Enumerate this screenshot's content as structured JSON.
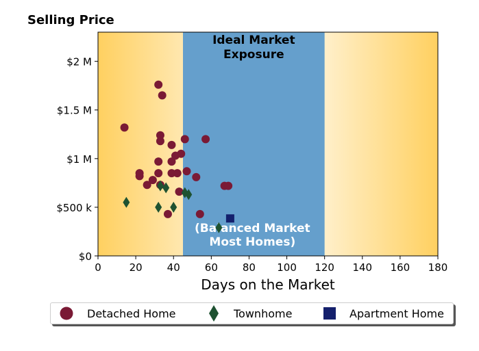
{
  "chart_data": {
    "type": "scatter",
    "title": "Selling Price",
    "xlabel": "Days on the Market",
    "ylabel": "",
    "xlim": [
      0,
      180
    ],
    "ylim": [
      0,
      2300000
    ],
    "x_ticks": [
      0,
      20,
      40,
      60,
      80,
      100,
      120,
      140,
      160,
      180
    ],
    "x_tick_labels": [
      "0",
      "20",
      "40",
      "60",
      "80",
      "100",
      "120",
      "140",
      "160",
      "180"
    ],
    "y_ticks": [
      0,
      500000,
      1000000,
      1500000,
      2000000
    ],
    "y_tick_labels": [
      "$0",
      "$500 k",
      "$1 M",
      "$1.5 M",
      "$2 M"
    ],
    "grid": false,
    "legend_position": "bottom",
    "band": {
      "x_range": [
        45,
        120
      ],
      "color": "#659fcc",
      "label_top": "Ideal Market\nExposure",
      "label_bottom": "(Balanced Market\nMost Homes)"
    },
    "background_gradient": {
      "edge_color": "#ffd060",
      "center_color": "#ffffff"
    },
    "series": [
      {
        "name": "Detached Home",
        "marker": "circle",
        "color": "#7a1a35",
        "points": [
          [
            14,
            1320000
          ],
          [
            22,
            820000
          ],
          [
            22,
            850000
          ],
          [
            26,
            730000
          ],
          [
            29,
            780000
          ],
          [
            32,
            1760000
          ],
          [
            32,
            970000
          ],
          [
            32,
            850000
          ],
          [
            33,
            1240000
          ],
          [
            33,
            1180000
          ],
          [
            33,
            730000
          ],
          [
            34,
            1650000
          ],
          [
            37,
            430000
          ],
          [
            39,
            1140000
          ],
          [
            39,
            970000
          ],
          [
            39,
            850000
          ],
          [
            41,
            1030000
          ],
          [
            42,
            850000
          ],
          [
            43,
            660000
          ],
          [
            44,
            1050000
          ],
          [
            46,
            1200000
          ],
          [
            47,
            870000
          ],
          [
            52,
            810000
          ],
          [
            54,
            430000
          ],
          [
            57,
            1200000
          ],
          [
            67,
            720000
          ],
          [
            69,
            720000
          ]
        ]
      },
      {
        "name": "Townhome",
        "marker": "diamond",
        "color": "#1e5231",
        "points": [
          [
            15,
            550000
          ],
          [
            32,
            500000
          ],
          [
            33,
            720000
          ],
          [
            36,
            700000
          ],
          [
            40,
            500000
          ],
          [
            46,
            650000
          ],
          [
            48,
            630000
          ],
          [
            64,
            290000
          ]
        ]
      },
      {
        "name": "Apartment Home",
        "marker": "square",
        "color": "#14206c",
        "points": [
          [
            70,
            385000
          ]
        ]
      }
    ]
  }
}
